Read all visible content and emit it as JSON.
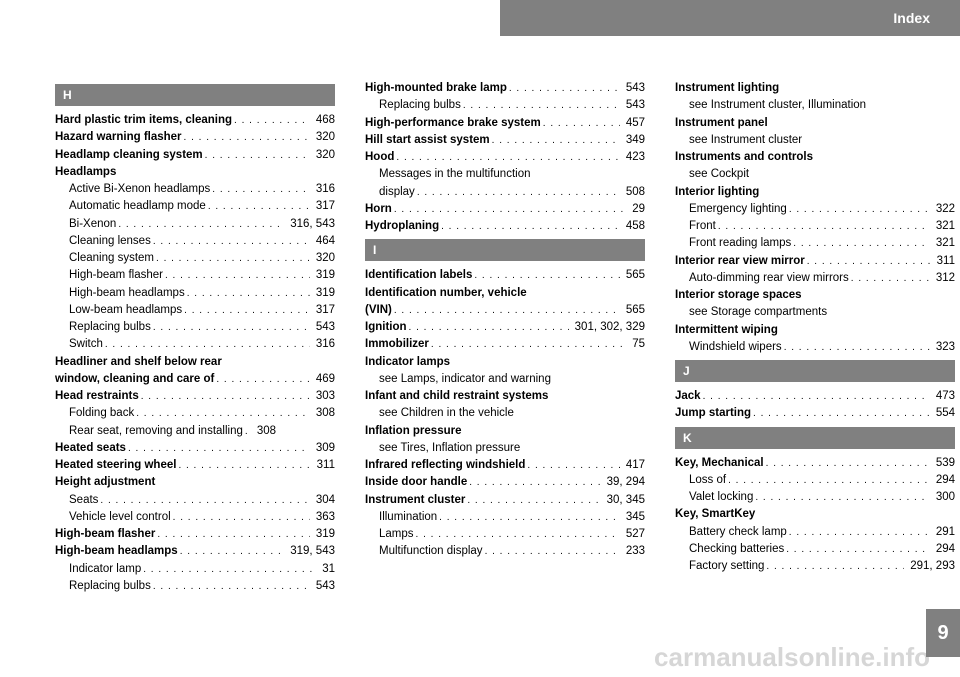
{
  "header": {
    "title": "Index"
  },
  "page_number": "9",
  "watermark": "carmanualsonline.info",
  "columns": [
    {
      "items": [
        {
          "type": "letter",
          "text": "H"
        },
        {
          "type": "entry",
          "label": "Hard plastic trim items, cleaning",
          "bold": true,
          "page": "468"
        },
        {
          "type": "entry",
          "label": "Hazard warning flasher",
          "bold": true,
          "page": "320"
        },
        {
          "type": "entry",
          "label": "Headlamp cleaning system",
          "bold": true,
          "page": "320"
        },
        {
          "type": "heading",
          "label": "Headlamps"
        },
        {
          "type": "sub",
          "label": "Active Bi-Xenon headlamps",
          "page": "316"
        },
        {
          "type": "sub",
          "label": "Automatic headlamp mode",
          "page": "317"
        },
        {
          "type": "sub",
          "label": "Bi-Xenon",
          "page": "316, 543"
        },
        {
          "type": "sub",
          "label": "Cleaning lenses",
          "page": "464"
        },
        {
          "type": "sub",
          "label": "Cleaning system",
          "page": "320"
        },
        {
          "type": "sub",
          "label": "High-beam flasher",
          "page": "319"
        },
        {
          "type": "sub",
          "label": "High-beam headlamps",
          "page": "319"
        },
        {
          "type": "sub",
          "label": "Low-beam headlamps",
          "page": "317"
        },
        {
          "type": "sub",
          "label": "Replacing bulbs",
          "page": "543"
        },
        {
          "type": "sub",
          "label": "Switch",
          "page": "316"
        },
        {
          "type": "heading",
          "label": "Headliner and shelf below rear"
        },
        {
          "type": "entry",
          "label": "window, cleaning and care of",
          "bold": true,
          "page": "469"
        },
        {
          "type": "entry",
          "label": "Head restraints",
          "bold": true,
          "page": "303"
        },
        {
          "type": "sub",
          "label": "Folding back",
          "page": "308"
        },
        {
          "type": "sub",
          "label": "Rear seat, removing and installing",
          "page": "308",
          "tight": true
        },
        {
          "type": "entry",
          "label": "Heated seats",
          "bold": true,
          "page": "309"
        },
        {
          "type": "entry",
          "label": "Heated steering wheel",
          "bold": true,
          "page": "311"
        },
        {
          "type": "heading",
          "label": "Height adjustment"
        },
        {
          "type": "sub",
          "label": "Seats",
          "page": "304"
        },
        {
          "type": "sub",
          "label": "Vehicle level control",
          "page": "363"
        },
        {
          "type": "entry",
          "label": "High-beam flasher",
          "bold": true,
          "page": "319"
        },
        {
          "type": "entry",
          "label": "High-beam headlamps",
          "bold": true,
          "page": "319, 543"
        },
        {
          "type": "sub",
          "label": "Indicator lamp",
          "page": "31"
        },
        {
          "type": "sub",
          "label": "Replacing bulbs",
          "page": "543"
        }
      ]
    },
    {
      "items": [
        {
          "type": "entry",
          "label": "High-mounted brake lamp",
          "bold": true,
          "page": "543"
        },
        {
          "type": "sub",
          "label": "Replacing bulbs",
          "page": "543"
        },
        {
          "type": "entry",
          "label": "High-performance brake system",
          "bold": true,
          "page": "457"
        },
        {
          "type": "entry",
          "label": "Hill start assist system",
          "bold": true,
          "page": "349"
        },
        {
          "type": "entry",
          "label": "Hood",
          "bold": true,
          "page": "423"
        },
        {
          "type": "sub-heading",
          "label": "Messages in the multifunction"
        },
        {
          "type": "sub",
          "label": "display",
          "page": "508"
        },
        {
          "type": "entry",
          "label": "Horn",
          "bold": true,
          "page": "29"
        },
        {
          "type": "entry",
          "label": "Hydroplaning",
          "bold": true,
          "page": "458"
        },
        {
          "type": "letter",
          "text": "I"
        },
        {
          "type": "entry",
          "label": "Identification labels",
          "bold": true,
          "page": "565"
        },
        {
          "type": "heading",
          "label": "Identification number, vehicle"
        },
        {
          "type": "entry",
          "label": "(VIN)",
          "bold": true,
          "page": "565"
        },
        {
          "type": "entry",
          "label": "Ignition",
          "bold": true,
          "page": "301, 302, 329"
        },
        {
          "type": "entry",
          "label": "Immobilizer",
          "bold": true,
          "page": "75"
        },
        {
          "type": "heading",
          "label": "Indicator lamps"
        },
        {
          "type": "see",
          "label": "see Lamps, indicator and warning"
        },
        {
          "type": "heading",
          "label": "Infant and child restraint systems"
        },
        {
          "type": "see",
          "label": "see Children in the vehicle"
        },
        {
          "type": "heading",
          "label": "Inflation pressure"
        },
        {
          "type": "see",
          "label": "see Tires, Inflation pressure"
        },
        {
          "type": "entry",
          "label": "Infrared reflecting windshield",
          "bold": true,
          "page": "417"
        },
        {
          "type": "entry",
          "label": "Inside door handle",
          "bold": true,
          "page": "39, 294"
        },
        {
          "type": "entry",
          "label": "Instrument cluster",
          "bold": true,
          "page": "30, 345"
        },
        {
          "type": "sub",
          "label": "Illumination",
          "page": "345"
        },
        {
          "type": "sub",
          "label": "Lamps",
          "page": "527"
        },
        {
          "type": "sub",
          "label": "Multifunction display",
          "page": "233"
        }
      ]
    },
    {
      "items": [
        {
          "type": "heading",
          "label": "Instrument lighting"
        },
        {
          "type": "see",
          "label": "see Instrument cluster, Illumination"
        },
        {
          "type": "heading",
          "label": "Instrument panel"
        },
        {
          "type": "see",
          "label": "see Instrument cluster"
        },
        {
          "type": "heading",
          "label": "Instruments and controls"
        },
        {
          "type": "see",
          "label": "see Cockpit"
        },
        {
          "type": "heading",
          "label": "Interior lighting"
        },
        {
          "type": "sub",
          "label": "Emergency lighting",
          "page": "322"
        },
        {
          "type": "sub",
          "label": "Front",
          "page": "321"
        },
        {
          "type": "sub",
          "label": "Front reading lamps",
          "page": "321"
        },
        {
          "type": "entry",
          "label": "Interior rear view mirror",
          "bold": true,
          "page": "311"
        },
        {
          "type": "sub",
          "label": "Auto-dimming rear view mirrors",
          "page": "312"
        },
        {
          "type": "heading",
          "label": "Interior storage spaces"
        },
        {
          "type": "see",
          "label": "see Storage compartments"
        },
        {
          "type": "heading",
          "label": "Intermittent wiping"
        },
        {
          "type": "sub",
          "label": "Windshield wipers",
          "page": "323"
        },
        {
          "type": "letter",
          "text": "J"
        },
        {
          "type": "entry",
          "label": "Jack",
          "bold": true,
          "page": "473"
        },
        {
          "type": "entry",
          "label": "Jump starting",
          "bold": true,
          "page": "554"
        },
        {
          "type": "letter",
          "text": "K"
        },
        {
          "type": "entry",
          "label": "Key, Mechanical",
          "bold": true,
          "page": "539"
        },
        {
          "type": "sub",
          "label": "Loss of",
          "page": "294"
        },
        {
          "type": "sub",
          "label": "Valet locking",
          "page": "300"
        },
        {
          "type": "heading",
          "label": "Key, SmartKey"
        },
        {
          "type": "sub",
          "label": "Battery check lamp",
          "page": "291"
        },
        {
          "type": "sub",
          "label": "Checking batteries",
          "page": "294"
        },
        {
          "type": "sub",
          "label": "Factory setting",
          "page": "291, 293"
        }
      ]
    }
  ]
}
